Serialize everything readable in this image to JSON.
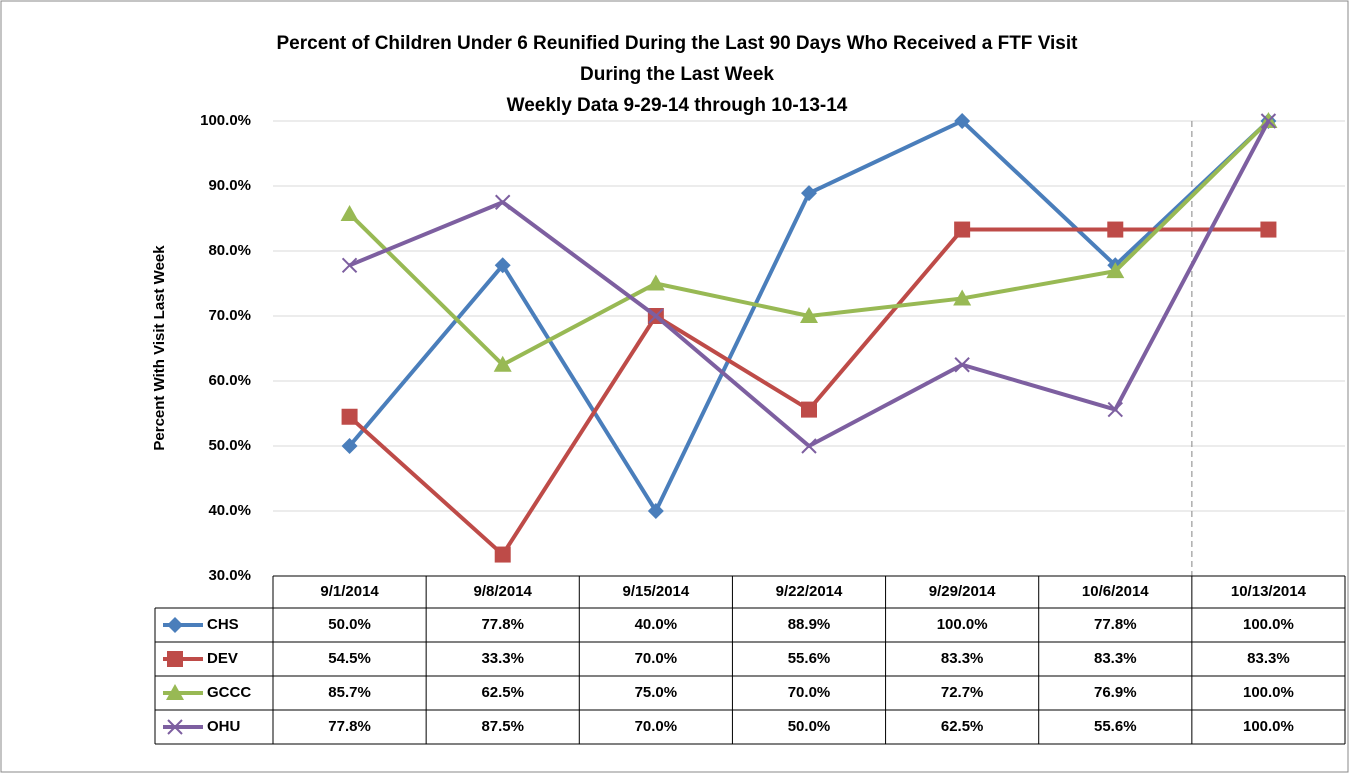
{
  "chart_data": {
    "type": "line",
    "title": [
      "Percent of Children Under 6 Reunified During the Last 90 Days Who Received a FTF Visit",
      "During the Last Week"
    ],
    "subtitle": "Weekly Data 9-29-14 through 10-13-14",
    "y_label": "Percent With Visit Last Week",
    "categories": [
      "9/1/2014",
      "9/8/2014",
      "9/15/2014",
      "9/22/2014",
      "9/29/2014",
      "10/6/2014",
      "10/13/2014"
    ],
    "ylim": [
      30,
      100
    ],
    "yticks": [
      {
        "value": 30,
        "label": "30.0%"
      },
      {
        "value": 40,
        "label": "40.0%"
      },
      {
        "value": 50,
        "label": "50.0%"
      },
      {
        "value": 60,
        "label": "60.0%"
      },
      {
        "value": 70,
        "label": "70.0%"
      },
      {
        "value": 80,
        "label": "80.0%"
      },
      {
        "value": 90,
        "label": "90.0%"
      },
      {
        "value": 100,
        "label": "100.0%"
      }
    ],
    "grid": true,
    "series": [
      {
        "name": "CHS",
        "color": "#4a7ebb",
        "marker": "diamond",
        "values": [
          50.0,
          77.8,
          40.0,
          88.9,
          100.0,
          77.8,
          100.0
        ],
        "value_labels": [
          "50.0%",
          "77.8%",
          "40.0%",
          "88.9%",
          "100.0%",
          "77.8%",
          "100.0%"
        ]
      },
      {
        "name": "DEV",
        "color": "#be4b48",
        "marker": "square",
        "values": [
          54.5,
          33.3,
          70.0,
          55.6,
          83.3,
          83.3,
          83.3
        ],
        "value_labels": [
          "54.5%",
          "33.3%",
          "70.0%",
          "55.6%",
          "83.3%",
          "83.3%",
          "83.3%"
        ]
      },
      {
        "name": "GCCC",
        "color": "#98b954",
        "marker": "triangle",
        "values": [
          85.7,
          62.5,
          75.0,
          70.0,
          72.7,
          76.9,
          100.0
        ],
        "value_labels": [
          "85.7%",
          "62.5%",
          "75.0%",
          "70.0%",
          "72.7%",
          "76.9%",
          "100.0%"
        ]
      },
      {
        "name": "OHU",
        "color": "#7d5fa0",
        "marker": "x",
        "values": [
          77.8,
          87.5,
          70.0,
          50.0,
          62.5,
          55.6,
          100.0
        ],
        "value_labels": [
          "77.8%",
          "87.5%",
          "70.0%",
          "50.0%",
          "62.5%",
          "55.6%",
          "100.0%"
        ]
      }
    ]
  }
}
